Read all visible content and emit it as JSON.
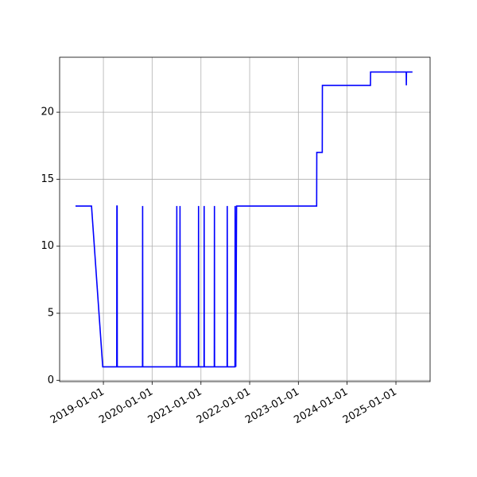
{
  "chart_data": {
    "type": "line",
    "color": "blue",
    "grid": true,
    "x": [
      "2018-06-06",
      "2018-10-04",
      "2018-12-27",
      "2019-04-11",
      "2019-04-12",
      "2019-04-14",
      "2019-04-15",
      "2019-10-21",
      "2019-10-22",
      "2019-10-23",
      "2020-07-03",
      "2020-07-04",
      "2020-07-05",
      "2020-07-27",
      "2020-07-28",
      "2020-07-29",
      "2020-12-13",
      "2020-12-14",
      "2020-12-15",
      "2021-01-24",
      "2021-01-25",
      "2021-01-26",
      "2021-04-11",
      "2021-04-12",
      "2021-04-13",
      "2021-07-16",
      "2021-07-17",
      "2021-07-18",
      "2021-09-13",
      "2021-09-14",
      "2021-09-19",
      "2021-09-25",
      "2023-05-18",
      "2023-05-19",
      "2023-06-29",
      "2023-06-30",
      "2024-06-24",
      "2024-06-25",
      "2025-03-19",
      "2025-03-20",
      "2025-03-21",
      "2025-05-05"
    ],
    "values": [
      13,
      13,
      1,
      1,
      13,
      13,
      1,
      1,
      13,
      1,
      1,
      13,
      1,
      1,
      13,
      1,
      1,
      13,
      1,
      1,
      13,
      1,
      1,
      13,
      1,
      1,
      13,
      1,
      1,
      13,
      1,
      13,
      13,
      17,
      17,
      22,
      22,
      23,
      23,
      22,
      23,
      23
    ],
    "xlim": [
      "2018-02-07",
      "2025-09-14"
    ],
    "xticks": [
      "2019-01-01",
      "2020-01-01",
      "2021-01-01",
      "2022-01-01",
      "2023-01-01",
      "2024-01-01",
      "2025-01-01"
    ],
    "ylim": [
      -0.1,
      24.1
    ],
    "yticks": [
      0,
      5,
      10,
      15,
      20
    ]
  }
}
